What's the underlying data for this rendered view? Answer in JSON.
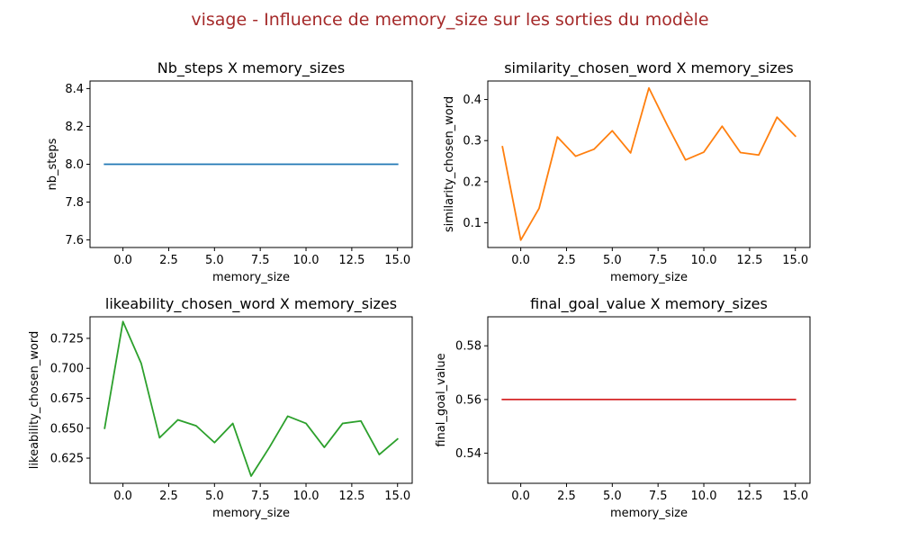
{
  "figure": {
    "suptitle": "visage - Influence de memory_size sur les sorties du modèle",
    "suptitle_color": "#a52a2a"
  },
  "chart_data": [
    {
      "type": "line",
      "title": "Nb_steps X memory_sizes",
      "xlabel": "memory_size",
      "ylabel": "nb_steps",
      "xlim": [
        -1.8,
        15.8
      ],
      "ylim": [
        7.56,
        8.44
      ],
      "xticks": [
        0,
        2.5,
        5,
        7.5,
        10,
        12.5,
        15
      ],
      "xtick_labels": [
        "0.0",
        "2.5",
        "5.0",
        "7.5",
        "10.0",
        "12.5",
        "15.0"
      ],
      "yticks": [
        7.6,
        7.8,
        8.0,
        8.2,
        8.4
      ],
      "ytick_labels": [
        "7.6",
        "7.8",
        "8.0",
        "8.2",
        "8.4"
      ],
      "color": "#1f77b4",
      "x": [
        -1,
        0,
        1,
        2,
        3,
        4,
        5,
        6,
        7,
        8,
        9,
        10,
        11,
        12,
        13,
        14,
        15
      ],
      "y": [
        8,
        8,
        8,
        8,
        8,
        8,
        8,
        8,
        8,
        8,
        8,
        8,
        8,
        8,
        8,
        8,
        8
      ]
    },
    {
      "type": "line",
      "title": "similarity_chosen_word X memory_sizes",
      "xlabel": "memory_size",
      "ylabel": "similarity_chosen_word",
      "xlim": [
        -1.8,
        15.8
      ],
      "ylim": [
        0.04,
        0.445
      ],
      "xticks": [
        0,
        2.5,
        5,
        7.5,
        10,
        12.5,
        15
      ],
      "xtick_labels": [
        "0.0",
        "2.5",
        "5.0",
        "7.5",
        "10.0",
        "12.5",
        "15.0"
      ],
      "yticks": [
        0.1,
        0.2,
        0.3,
        0.4
      ],
      "ytick_labels": [
        "0.1",
        "0.2",
        "0.3",
        "0.4"
      ],
      "color": "#ff7f0e",
      "x": [
        -1,
        0,
        1,
        2,
        3,
        4,
        5,
        6,
        7,
        8,
        9,
        10,
        11,
        12,
        13,
        14,
        15
      ],
      "y": [
        0.285,
        0.058,
        0.135,
        0.309,
        0.262,
        0.279,
        0.324,
        0.27,
        0.428,
        0.338,
        0.253,
        0.272,
        0.335,
        0.271,
        0.265,
        0.357,
        0.311
      ]
    },
    {
      "type": "line",
      "title": "likeability_chosen_word X memory_sizes",
      "xlabel": "memory_size",
      "ylabel": "likeability_chosen_word",
      "xlim": [
        -1.8,
        15.8
      ],
      "ylim": [
        0.604,
        0.743
      ],
      "xticks": [
        0,
        2.5,
        5,
        7.5,
        10,
        12.5,
        15
      ],
      "xtick_labels": [
        "0.0",
        "2.5",
        "5.0",
        "7.5",
        "10.0",
        "12.5",
        "15.0"
      ],
      "yticks": [
        0.625,
        0.65,
        0.675,
        0.7,
        0.725
      ],
      "ytick_labels": [
        "0.625",
        "0.650",
        "0.675",
        "0.700",
        "0.725"
      ],
      "color": "#2ca02c",
      "x": [
        -1,
        0,
        1,
        2,
        3,
        4,
        5,
        6,
        7,
        8,
        9,
        10,
        11,
        12,
        13,
        14,
        15
      ],
      "y": [
        0.65,
        0.739,
        0.704,
        0.642,
        0.657,
        0.652,
        0.638,
        0.654,
        0.61,
        0.634,
        0.66,
        0.654,
        0.634,
        0.654,
        0.656,
        0.628,
        0.641
      ]
    },
    {
      "type": "line",
      "title": "final_goal_value X memory_sizes",
      "xlabel": "memory_size",
      "ylabel": "final_goal_value",
      "xlim": [
        -1.8,
        15.8
      ],
      "ylim": [
        0.5288,
        0.5908
      ],
      "xticks": [
        0,
        2.5,
        5,
        7.5,
        10,
        12.5,
        15
      ],
      "xtick_labels": [
        "0.0",
        "2.5",
        "5.0",
        "7.5",
        "10.0",
        "12.5",
        "15.0"
      ],
      "yticks": [
        0.54,
        0.56,
        0.58
      ],
      "ytick_labels": [
        "0.54",
        "0.56",
        "0.58"
      ],
      "color": "#d62728",
      "x": [
        -1,
        0,
        1,
        2,
        3,
        4,
        5,
        6,
        7,
        8,
        9,
        10,
        11,
        12,
        13,
        14,
        15
      ],
      "y": [
        0.56,
        0.56,
        0.56,
        0.56,
        0.56,
        0.56,
        0.56,
        0.56,
        0.56,
        0.56,
        0.56,
        0.56,
        0.56,
        0.56,
        0.56,
        0.56,
        0.56
      ]
    }
  ]
}
